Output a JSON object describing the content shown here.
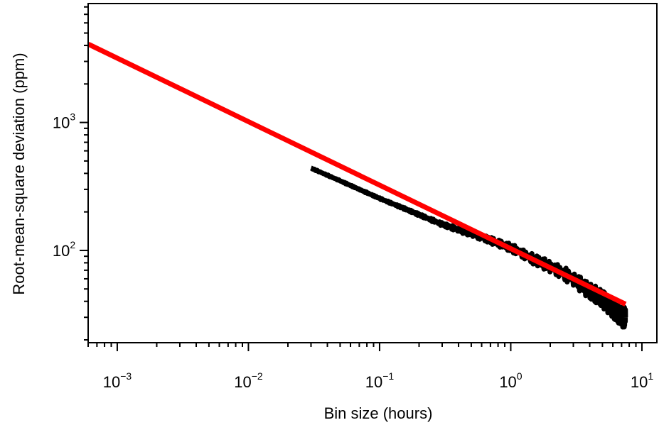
{
  "chart_data": {
    "type": "line",
    "title": "",
    "xlabel": "Bin size (hours)",
    "ylabel": "Root-mean-square deviation (ppm)",
    "xscale": "log",
    "yscale": "log",
    "xlim": [
      0.0006,
      13
    ],
    "ylim": [
      19,
      8500
    ],
    "grid": false,
    "legend": "none",
    "x_ticks": [
      {
        "base": "10",
        "exp": "−3",
        "value": 0.001
      },
      {
        "base": "10",
        "exp": "−2",
        "value": 0.01
      },
      {
        "base": "10",
        "exp": "−1",
        "value": 0.1
      },
      {
        "base": "10",
        "exp": "0",
        "value": 1
      },
      {
        "base": "10",
        "exp": "1",
        "value": 10
      }
    ],
    "y_ticks": [
      {
        "base": "10",
        "exp": "2",
        "value": 100
      },
      {
        "base": "10",
        "exp": "3",
        "value": 1000
      }
    ],
    "series": [
      {
        "color": "#000000",
        "x": [
          0.03,
          0.05,
          0.07,
          0.1,
          0.15,
          0.2,
          0.3,
          0.4,
          0.5,
          0.7,
          1.0,
          1.5,
          2.0,
          3.0,
          4.0,
          5.0,
          6.0,
          7.0,
          7.5
        ],
        "y": [
          440,
          350,
          300,
          255,
          215,
          190,
          160,
          145,
          135,
          120,
          105,
          85,
          75,
          60,
          48,
          42,
          35,
          30,
          30
        ]
      },
      {
        "color": "#ff0000",
        "x": [
          0.0006,
          7.5
        ],
        "y": [
          4100,
          38
        ]
      }
    ]
  }
}
